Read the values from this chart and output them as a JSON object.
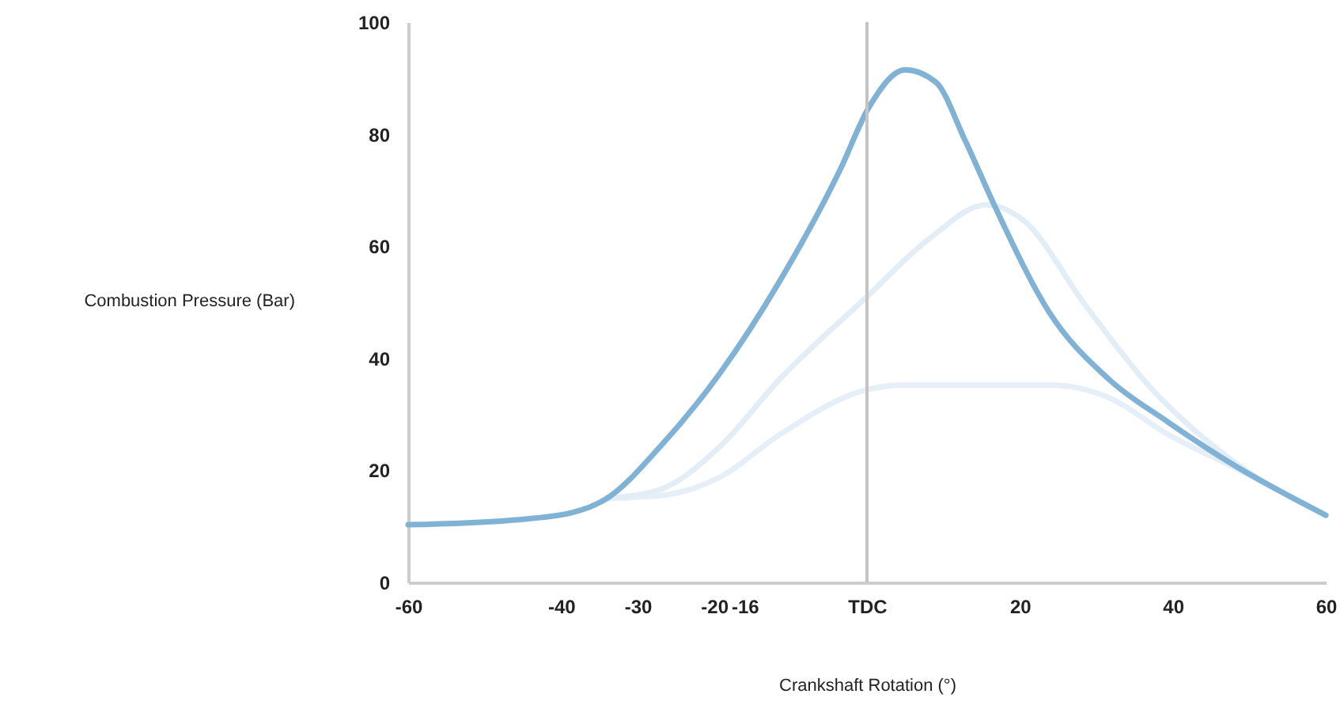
{
  "chart_data": {
    "type": "line",
    "xlabel": "Crankshaft Rotation (°)",
    "ylabel": "Combustion Pressure (Bar)",
    "xlim": [
      -60,
      60
    ],
    "ylim": [
      0,
      100
    ],
    "xticks": [
      -60,
      -40,
      -30,
      -20,
      -16,
      {
        "value": 0,
        "label": "TDC"
      },
      20,
      40,
      60
    ],
    "yticks": [
      0,
      20,
      40,
      60,
      80,
      100
    ],
    "line_style": "solid",
    "ref_lines": [
      {
        "axis": "x",
        "value": 0,
        "color": "#c4c4c4"
      }
    ],
    "series": [
      {
        "color": "#e6eff7",
        "x": [
          -34,
          -27,
          -19.2,
          -11.4,
          0,
          4.5,
          24.2,
          31.6,
          39.4,
          47.3,
          60
        ],
        "values": [
          15,
          15.5,
          18.8,
          26.4,
          34.4,
          35.2,
          35.2,
          33,
          26.4,
          21,
          12
        ]
      },
      {
        "color": "#e2edf6",
        "x": [
          -34,
          -27,
          -19.2,
          -11.4,
          0,
          8.2,
          15.6,
          20.4,
          28.6,
          36.8,
          47.3,
          60
        ],
        "values": [
          15,
          16.6,
          24.3,
          36.3,
          51,
          61.4,
          67.4,
          64.7,
          49.4,
          35.2,
          22.2,
          12
        ]
      },
      {
        "color": "#80b2d6",
        "x": [
          -60,
          -46.6,
          -38.7,
          -34,
          -27,
          -19.2,
          -11.4,
          -3.6,
          0.3,
          5,
          9,
          12.8,
          16.8,
          23.8,
          31.6,
          39.4,
          47.3,
          60
        ],
        "values": [
          10.3,
          11.1,
          12.4,
          15,
          24.3,
          37.4,
          53.8,
          73.4,
          84.9,
          91.5,
          89.3,
          79,
          66.9,
          48.3,
          36.3,
          28.6,
          21.5,
          12
        ]
      }
    ]
  }
}
